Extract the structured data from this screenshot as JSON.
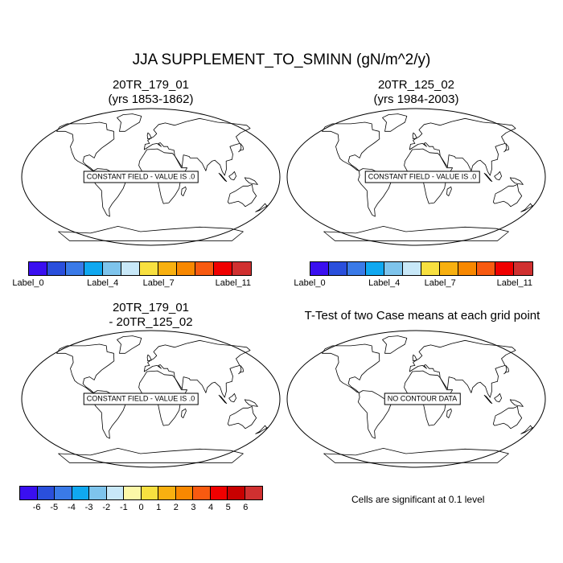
{
  "figure": {
    "title": "JJA SUPPLEMENT_TO_SMINN (gN/m^2/y)",
    "note": "Cells are significant at 0.1 level"
  },
  "colors": {
    "map_outline": "#000000",
    "box_bg": "#ffffff"
  },
  "chart_data": [
    {
      "type": "heatmap",
      "title_line1": "20TR_179_01",
      "title_line2": "(yrs 1853-1862)",
      "map_message": "CONSTANT FIELD - VALUE IS .0",
      "projection": "robinson",
      "colorbar": {
        "colors": [
          "#3a0ff0",
          "#2a4fdc",
          "#3a7ae8",
          "#10a8f0",
          "#7ec4ec",
          "#c8e8f8",
          "#f8e040",
          "#f8b010",
          "#f88800",
          "#f85a10",
          "#f00000",
          "#d03030"
        ],
        "labels": [
          {
            "text": "Label_0",
            "index": 0
          },
          {
            "text": "Label_4",
            "index": 4
          },
          {
            "text": "Label_7",
            "index": 7
          },
          {
            "text": "Label_11",
            "index": 11
          }
        ]
      }
    },
    {
      "type": "heatmap",
      "title_line1": "20TR_125_02",
      "title_line2": "(yrs 1984-2003)",
      "map_message": "CONSTANT FIELD - VALUE IS .0",
      "projection": "robinson",
      "colorbar": {
        "colors": [
          "#3a0ff0",
          "#2a4fdc",
          "#3a7ae8",
          "#10a8f0",
          "#7ec4ec",
          "#c8e8f8",
          "#f8e040",
          "#f8b010",
          "#f88800",
          "#f85a10",
          "#f00000",
          "#d03030"
        ],
        "labels": [
          {
            "text": "Label_0",
            "index": 0
          },
          {
            "text": "Label_4",
            "index": 4
          },
          {
            "text": "Label_7",
            "index": 7
          },
          {
            "text": "Label_11",
            "index": 11
          }
        ]
      }
    },
    {
      "type": "heatmap",
      "title_line1": "20TR_179_01",
      "title_line2": "- 20TR_125_02",
      "map_message": "CONSTANT FIELD - VALUE IS .0",
      "projection": "robinson",
      "colorbar": {
        "colors": [
          "#3a0ff0",
          "#2a4fdc",
          "#3a7ae8",
          "#10a8f0",
          "#7ec4ec",
          "#c8e8f8",
          "#fcf8a8",
          "#f8e040",
          "#f8b010",
          "#f88800",
          "#f85a10",
          "#f00000",
          "#c80000",
          "#d03030"
        ],
        "labels": [
          {
            "text": "-6",
            "index": 1
          },
          {
            "text": "-5",
            "index": 2
          },
          {
            "text": "-4",
            "index": 3
          },
          {
            "text": "-3",
            "index": 4
          },
          {
            "text": "-2",
            "index": 5
          },
          {
            "text": "-1",
            "index": 6
          },
          {
            "text": "0",
            "index": 7
          },
          {
            "text": "1",
            "index": 8
          },
          {
            "text": "2",
            "index": 9
          },
          {
            "text": "3",
            "index": 10
          },
          {
            "text": "4",
            "index": 11
          },
          {
            "text": "5",
            "index": 12
          },
          {
            "text": "6",
            "index": 13
          }
        ]
      }
    },
    {
      "type": "heatmap",
      "title_line1": "T-Test of two Case means at each grid point",
      "title_line2": "",
      "map_message": "NO CONTOUR DATA",
      "projection": "robinson"
    }
  ]
}
